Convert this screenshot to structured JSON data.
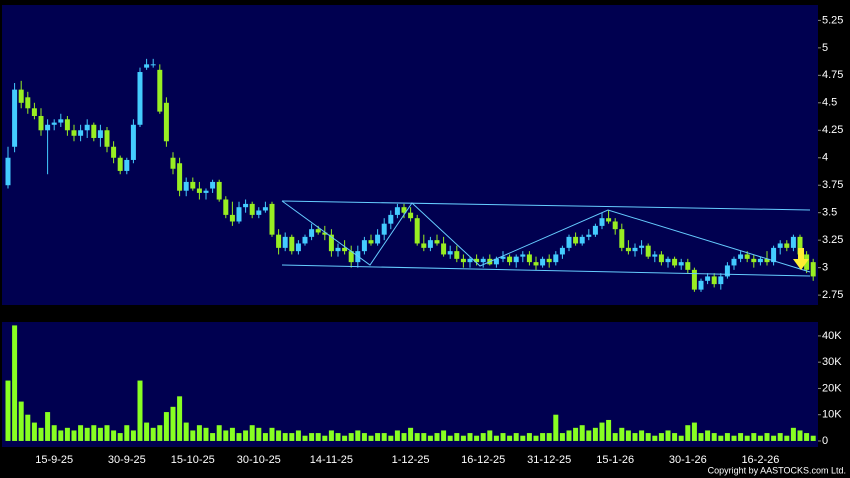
{
  "chart_data": [
    {
      "type": "candlestick",
      "categories": [
        null,
        null,
        null,
        null,
        null,
        null,
        null,
        "15-9-25",
        null,
        null,
        null,
        null,
        null,
        null,
        null,
        null,
        null,
        null,
        "30-9-25",
        null,
        null,
        null,
        null,
        null,
        null,
        null,
        null,
        null,
        "15-10-25",
        null,
        null,
        null,
        null,
        null,
        null,
        null,
        null,
        null,
        "30-10-25",
        null,
        null,
        null,
        null,
        null,
        null,
        null,
        null,
        null,
        null,
        "14-11-25",
        null,
        null,
        null,
        null,
        null,
        null,
        null,
        null,
        null,
        null,
        null,
        "1-12-25",
        null,
        null,
        null,
        null,
        null,
        null,
        null,
        null,
        null,
        null,
        "16-12-25",
        null,
        null,
        null,
        null,
        null,
        null,
        null,
        null,
        null,
        "31-12-25",
        null,
        null,
        null,
        null,
        null,
        null,
        null,
        null,
        null,
        "15-1-26",
        null,
        null,
        null,
        null,
        null,
        null,
        null,
        null,
        null,
        null,
        "30-1-26",
        null,
        null,
        null,
        null,
        null,
        null,
        null,
        null,
        null,
        null,
        "16-2-26",
        null,
        null,
        null,
        null,
        null,
        null,
        null,
        null
      ],
      "open": [
        3.75,
        4.1,
        4.62,
        4.55,
        4.45,
        4.38,
        4.25,
        4.3,
        4.32,
        4.35,
        4.25,
        4.2,
        4.25,
        4.3,
        4.18,
        4.25,
        4.1,
        4.0,
        3.88,
        3.98,
        4.3,
        4.82,
        4.85,
        4.8,
        4.5,
        4.0,
        3.95,
        3.7,
        3.78,
        3.72,
        3.68,
        3.72,
        3.78,
        3.62,
        3.48,
        3.42,
        3.55,
        3.58,
        3.48,
        3.52,
        3.58,
        3.3,
        3.18,
        3.28,
        3.15,
        3.22,
        3.28,
        3.35,
        3.32,
        3.3,
        3.15,
        3.18,
        3.15,
        3.05,
        3.15,
        3.25,
        3.22,
        3.3,
        3.4,
        3.48,
        3.55,
        3.5,
        3.45,
        3.22,
        3.18,
        3.25,
        3.22,
        3.12,
        3.15,
        3.08,
        3.05,
        3.08,
        3.05,
        3.08,
        3.03,
        3.08,
        3.1,
        3.05,
        3.1,
        3.12,
        3.05,
        3.02,
        3.08,
        3.05,
        3.12,
        3.18,
        3.28,
        3.22,
        3.28,
        3.3,
        3.38,
        3.45,
        3.42,
        3.35,
        3.18,
        3.15,
        3.18,
        3.2,
        3.1,
        3.12,
        3.05,
        3.08,
        3.02,
        3.05,
        2.98,
        2.8,
        2.88,
        2.92,
        2.85,
        2.92,
        3.02,
        3.08,
        3.12,
        3.08,
        3.05,
        3.08,
        3.05,
        3.18,
        3.22,
        3.18,
        3.28,
        3.12,
        3.05
      ],
      "high": [
        4.1,
        4.68,
        4.7,
        4.6,
        4.5,
        4.45,
        4.35,
        4.35,
        4.4,
        4.38,
        4.3,
        4.3,
        4.35,
        4.32,
        4.3,
        4.28,
        4.15,
        4.02,
        4.0,
        4.35,
        4.82,
        4.9,
        4.9,
        4.85,
        4.55,
        4.05,
        4.0,
        3.82,
        3.82,
        3.78,
        3.72,
        3.8,
        3.8,
        3.65,
        3.6,
        3.6,
        3.62,
        3.6,
        3.55,
        3.6,
        3.6,
        3.35,
        3.32,
        3.3,
        3.25,
        3.3,
        3.4,
        3.38,
        3.38,
        3.35,
        3.22,
        3.25,
        3.2,
        3.2,
        3.28,
        3.3,
        3.35,
        3.45,
        3.52,
        3.58,
        3.58,
        3.55,
        3.48,
        3.3,
        3.28,
        3.3,
        3.28,
        3.2,
        3.2,
        3.12,
        3.1,
        3.12,
        3.1,
        3.12,
        3.1,
        3.15,
        3.12,
        3.12,
        3.15,
        3.15,
        3.1,
        3.1,
        3.12,
        3.15,
        3.2,
        3.3,
        3.32,
        3.3,
        3.35,
        3.4,
        3.5,
        3.52,
        3.45,
        3.4,
        3.25,
        3.22,
        3.25,
        3.22,
        3.15,
        3.15,
        3.1,
        3.1,
        3.08,
        3.08,
        3.0,
        2.9,
        2.95,
        2.95,
        2.95,
        3.05,
        3.1,
        3.15,
        3.15,
        3.12,
        3.1,
        3.15,
        3.2,
        3.25,
        3.25,
        3.3,
        3.3,
        3.15,
        3.08
      ],
      "low": [
        3.72,
        4.05,
        4.45,
        4.4,
        4.35,
        4.2,
        3.85,
        4.25,
        4.28,
        4.2,
        4.15,
        4.15,
        4.18,
        4.15,
        4.1,
        4.05,
        3.95,
        3.85,
        3.85,
        3.95,
        4.28,
        4.8,
        4.82,
        4.4,
        4.1,
        3.85,
        3.65,
        3.65,
        3.7,
        3.62,
        3.62,
        3.68,
        3.6,
        3.45,
        3.38,
        3.4,
        3.5,
        3.45,
        3.45,
        3.5,
        3.28,
        3.12,
        3.15,
        3.12,
        3.12,
        3.2,
        3.25,
        3.3,
        3.25,
        3.1,
        3.1,
        3.12,
        3.0,
        3.0,
        3.12,
        3.2,
        3.2,
        3.25,
        3.35,
        3.45,
        3.45,
        3.42,
        3.2,
        3.15,
        3.15,
        3.2,
        3.1,
        3.08,
        3.05,
        3.0,
        3.0,
        3.02,
        3.0,
        3.02,
        3.0,
        3.05,
        3.02,
        3.0,
        3.05,
        3.02,
        2.98,
        3.0,
        3.0,
        3.02,
        3.08,
        3.15,
        3.2,
        3.2,
        3.25,
        3.28,
        3.35,
        3.4,
        3.3,
        3.15,
        3.12,
        3.1,
        3.12,
        3.08,
        3.05,
        3.02,
        3.0,
        3.0,
        2.98,
        2.95,
        2.78,
        2.78,
        2.85,
        2.82,
        2.8,
        2.9,
        2.98,
        3.05,
        3.05,
        3.0,
        3.02,
        3.02,
        3.02,
        3.12,
        3.15,
        3.15,
        3.1,
        2.95,
        2.88
      ],
      "close": [
        4.0,
        4.62,
        4.5,
        4.45,
        4.38,
        4.25,
        4.3,
        4.32,
        4.35,
        4.25,
        4.2,
        4.25,
        4.3,
        4.18,
        4.25,
        4.1,
        4.0,
        3.88,
        3.98,
        4.3,
        4.78,
        4.85,
        4.85,
        4.42,
        4.15,
        3.9,
        3.7,
        3.78,
        3.72,
        3.68,
        3.7,
        3.78,
        3.62,
        3.48,
        3.42,
        3.55,
        3.58,
        3.48,
        3.52,
        3.55,
        3.3,
        3.18,
        3.28,
        3.15,
        3.22,
        3.28,
        3.35,
        3.32,
        3.3,
        3.15,
        3.18,
        3.15,
        3.05,
        3.15,
        3.25,
        3.22,
        3.3,
        3.4,
        3.48,
        3.55,
        3.5,
        3.45,
        3.22,
        3.18,
        3.25,
        3.22,
        3.12,
        3.15,
        3.08,
        3.05,
        3.08,
        3.05,
        3.08,
        3.03,
        3.08,
        3.1,
        3.05,
        3.1,
        3.12,
        3.05,
        3.02,
        3.08,
        3.05,
        3.12,
        3.18,
        3.28,
        3.22,
        3.28,
        3.3,
        3.38,
        3.45,
        3.42,
        3.35,
        3.18,
        3.15,
        3.18,
        3.2,
        3.1,
        3.12,
        3.05,
        3.08,
        3.02,
        3.05,
        2.98,
        2.8,
        2.88,
        2.92,
        2.85,
        2.92,
        3.02,
        3.08,
        3.12,
        3.08,
        3.05,
        3.08,
        3.05,
        3.18,
        3.22,
        3.18,
        3.28,
        3.12,
        2.98,
        2.92
      ],
      "up_color": "#44ccff",
      "down_color": "#99ee22",
      "ylim": [
        2.66,
        5.39
      ],
      "yticks": [
        2.75,
        3,
        3.25,
        3.5,
        3.75,
        4,
        4.25,
        4.5,
        4.75,
        5,
        5.25
      ]
    },
    {
      "type": "bar",
      "values": [
        23000,
        44000,
        15000,
        10000,
        7000,
        5000,
        11000,
        6000,
        4000,
        5000,
        4000,
        6000,
        5000,
        6000,
        5000,
        6000,
        4000,
        3000,
        6000,
        4000,
        23000,
        7000,
        5000,
        6000,
        11000,
        13000,
        17000,
        7000,
        4000,
        6000,
        5000,
        3000,
        6000,
        4000,
        5000,
        3000,
        4000,
        6000,
        5000,
        3000,
        5000,
        4000,
        3000,
        3000,
        4000,
        2000,
        3000,
        3000,
        2000,
        4000,
        3000,
        2000,
        3000,
        4000,
        3000,
        2000,
        3000,
        3000,
        2000,
        4000,
        3000,
        5000,
        3000,
        3000,
        2000,
        3000,
        4000,
        2000,
        3000,
        2000,
        3000,
        2000,
        3000,
        4000,
        2000,
        3000,
        2000,
        3000,
        2000,
        3000,
        2000,
        3000,
        3000,
        10000,
        3000,
        4000,
        5000,
        6000,
        4000,
        5000,
        7000,
        8000,
        3000,
        5000,
        4000,
        3000,
        4000,
        3000,
        2000,
        3000,
        4000,
        3000,
        2000,
        6000,
        7000,
        3000,
        4000,
        3000,
        2000,
        3000,
        2000,
        3000,
        2000,
        3000,
        2000,
        3000,
        2000,
        3000,
        2000,
        5000,
        4000,
        3000,
        2000
      ],
      "color": "#88ff22",
      "ylim": [
        -2300,
        45300
      ],
      "yticks": [
        0,
        {
          "value": 10000,
          "label": "10K"
        },
        {
          "value": 20000,
          "label": "20K"
        },
        {
          "value": 30000,
          "label": "30K"
        },
        {
          "value": 40000,
          "label": "40K"
        }
      ]
    }
  ],
  "copyright": "Copyright by AASTOCKS.com Ltd."
}
